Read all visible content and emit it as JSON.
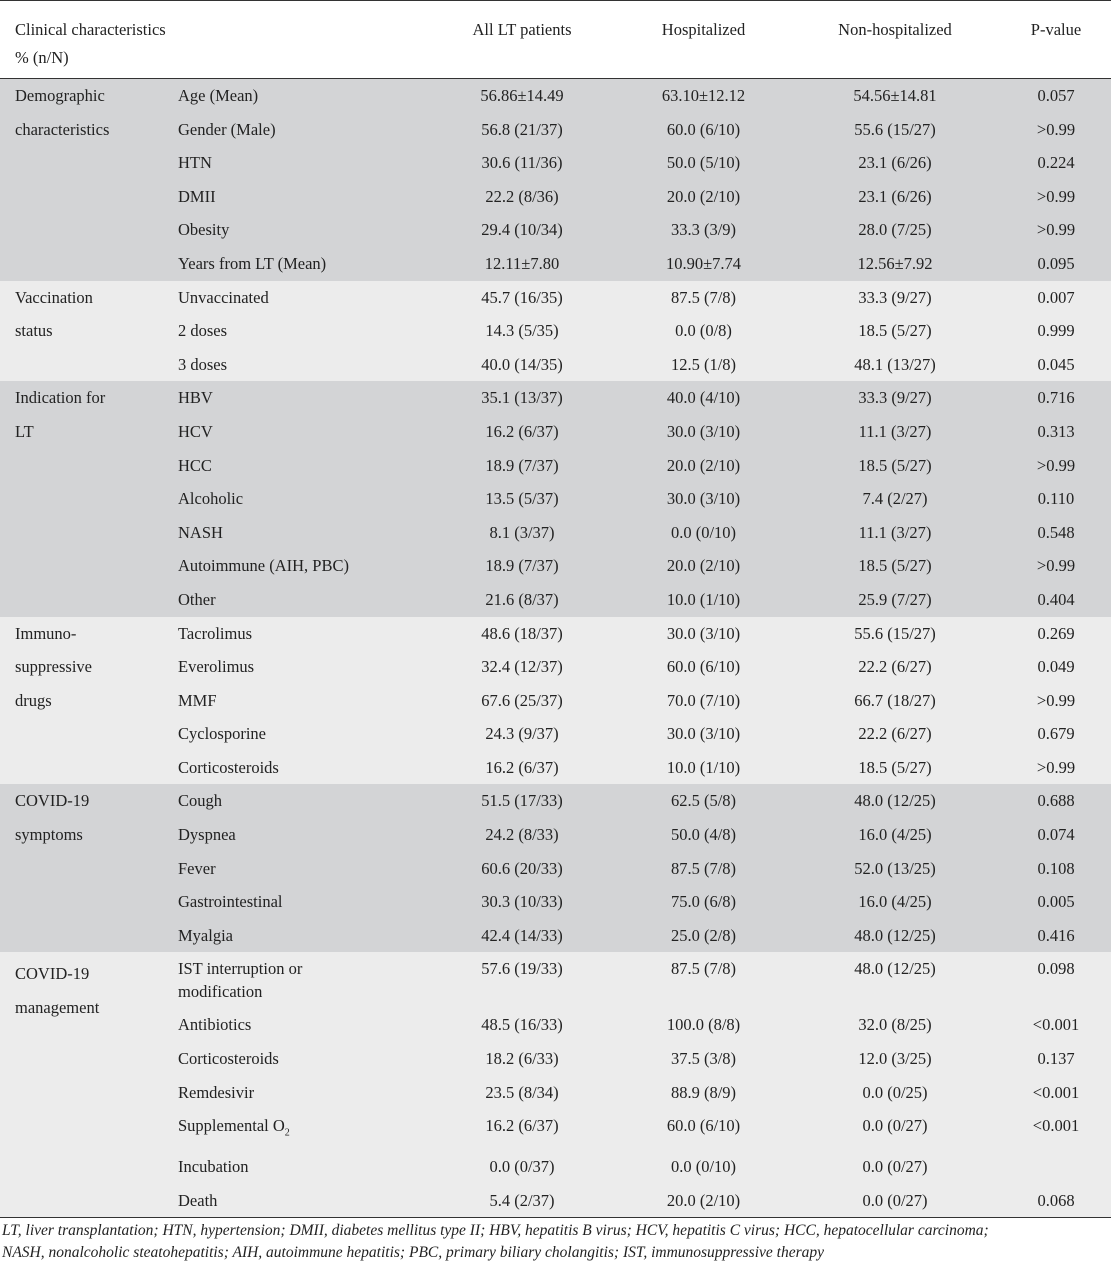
{
  "header": {
    "col1_line1": "Clinical characteristics",
    "col1_line2": "% (n/N)",
    "col_all": "All LT patients",
    "col_hosp": "Hospitalized",
    "col_non": "Non-hospitalized",
    "col_p": "P-value"
  },
  "groups": [
    {
      "category": [
        "Demographic",
        "characteristics"
      ],
      "rows": [
        [
          "Age (Mean)",
          "56.86±14.49",
          "63.10±12.12",
          "54.56±14.81",
          "0.057"
        ],
        [
          "Gender (Male)",
          "56.8 (21/37)",
          "60.0 (6/10)",
          "55.6 (15/27)",
          ">0.99"
        ],
        [
          "HTN",
          "30.6 (11/36)",
          "50.0 (5/10)",
          "23.1 (6/26)",
          "0.224"
        ],
        [
          "DMII",
          "22.2 (8/36)",
          "20.0 (2/10)",
          "23.1 (6/26)",
          ">0.99"
        ],
        [
          "Obesity",
          "29.4 (10/34)",
          "33.3 (3/9)",
          "28.0 (7/25)",
          ">0.99"
        ],
        [
          "Years from LT (Mean)",
          "12.11±7.80",
          "10.90±7.74",
          "12.56±7.92",
          "0.095"
        ]
      ]
    },
    {
      "category": [
        "Vaccination",
        "status"
      ],
      "rows": [
        [
          "Unvaccinated",
          "45.7 (16/35)",
          "87.5 (7/8)",
          "33.3 (9/27)",
          "0.007"
        ],
        [
          "2 doses",
          "14.3 (5/35)",
          "0.0 (0/8)",
          "18.5 (5/27)",
          "0.999"
        ],
        [
          "3 doses",
          "40.0 (14/35)",
          "12.5 (1/8)",
          "48.1 (13/27)",
          "0.045"
        ]
      ]
    },
    {
      "category": [
        "Indication for",
        "LT"
      ],
      "rows": [
        [
          "HBV",
          "35.1 (13/37)",
          "40.0 (4/10)",
          "33.3 (9/27)",
          "0.716"
        ],
        [
          "HCV",
          "16.2 (6/37)",
          "30.0 (3/10)",
          "11.1 (3/27)",
          "0.313"
        ],
        [
          "HCC",
          "18.9 (7/37)",
          "20.0 (2/10)",
          "18.5 (5/27)",
          ">0.99"
        ],
        [
          "Alcoholic",
          "13.5 (5/37)",
          "30.0 (3/10)",
          "7.4 (2/27)",
          "0.110"
        ],
        [
          "NASH",
          "8.1 (3/37)",
          "0.0 (0/10)",
          "11.1 (3/27)",
          "0.548"
        ],
        [
          "Autoimmune (AIH, PBC)",
          "18.9 (7/37)",
          "20.0 (2/10)",
          "18.5 (5/27)",
          ">0.99"
        ],
        [
          "Other",
          "21.6 (8/37)",
          "10.0 (1/10)",
          "25.9 (7/27)",
          "0.404"
        ]
      ]
    },
    {
      "category": [
        "Immuno-",
        "suppressive",
        "drugs"
      ],
      "rows": [
        [
          "Tacrolimus",
          "48.6 (18/37)",
          "30.0 (3/10)",
          "55.6 (15/27)",
          "0.269"
        ],
        [
          "Everolimus",
          "32.4 (12/37)",
          "60.0 (6/10)",
          "22.2 (6/27)",
          "0.049"
        ],
        [
          "MMF",
          "67.6 (25/37)",
          "70.0 (7/10)",
          "66.7 (18/27)",
          ">0.99"
        ],
        [
          "Cyclosporine",
          "24.3 (9/37)",
          "30.0 (3/10)",
          "22.2 (6/27)",
          "0.679"
        ],
        [
          "Corticosteroids",
          "16.2 (6/37)",
          "10.0 (1/10)",
          "18.5 (5/27)",
          ">0.99"
        ]
      ]
    },
    {
      "category": [
        "COVID-19",
        "symptoms"
      ],
      "rows": [
        [
          "Cough",
          "51.5 (17/33)",
          "62.5 (5/8)",
          "48.0 (12/25)",
          "0.688"
        ],
        [
          "Dyspnea",
          "24.2 (8/33)",
          "50.0 (4/8)",
          "16.0 (4/25)",
          "0.074"
        ],
        [
          "Fever",
          "60.6 (20/33)",
          "87.5 (7/8)",
          "52.0 (13/25)",
          "0.108"
        ],
        [
          "Gastrointestinal",
          "30.3 (10/33)",
          "75.0 (6/8)",
          "16.0 (4/25)",
          "0.005"
        ],
        [
          "Myalgia",
          "42.4 (14/33)",
          "25.0 (2/8)",
          "48.0 (12/25)",
          "0.416"
        ]
      ]
    },
    {
      "category": [
        "COVID-19",
        "management"
      ],
      "first_row": {
        "item": [
          "IST interruption or",
          "modification"
        ],
        "all": "57.6 (19/33)",
        "hosp": "87.5 (7/8)",
        "non": "48.0 (12/25)",
        "p": "0.098"
      },
      "rows": [
        [
          "Antibiotics",
          "48.5 (16/33)",
          "100.0 (8/8)",
          "32.0 (8/25)",
          "<0.001"
        ],
        [
          "Corticosteroids",
          "18.2 (6/33)",
          "37.5 (3/8)",
          "12.0 (3/25)",
          "0.137"
        ],
        [
          "Remdesivir",
          "23.5 (8/34)",
          "88.9 (8/9)",
          "0.0 (0/25)",
          "<0.001"
        ],
        [
          "Supplemental O",
          "16.2 (6/37)",
          "60.0 (6/10)",
          "0.0 (0/27)",
          "<0.001"
        ],
        [
          "Incubation",
          "0.0 (0/37)",
          "0.0 (0/10)",
          "0.0 (0/27)",
          ""
        ],
        [
          "Death",
          "5.4 (2/37)",
          "20.0 (2/10)",
          "0.0 (0/27)",
          "0.068"
        ]
      ],
      "o2_subscript": "2"
    }
  ],
  "footer": {
    "line1": "LT, liver transplantation; HTN, hypertension; DMII, diabetes mellitus type II; HBV, hepatitis B virus; HCV, hepatitis C virus; HCC, hepatocellular carcinoma;",
    "line2": "NASH, nonalcoholic steatohepatitis; AIH, autoimmune hepatitis; PBC, primary biliary cholangitis; IST, immunosuppressive therapy"
  }
}
